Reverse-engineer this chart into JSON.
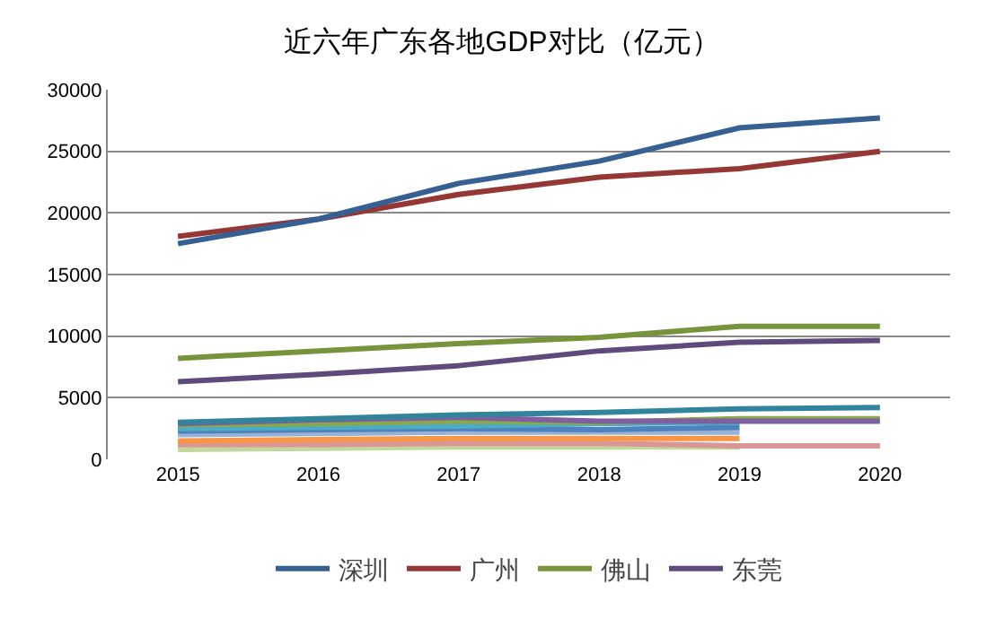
{
  "chart_data": {
    "type": "line",
    "title": "近六年广东各地GDP对比（亿元）",
    "categories": [
      "2015",
      "2016",
      "2017",
      "2018",
      "2019",
      "2020"
    ],
    "ylim": [
      0,
      30000
    ],
    "yticks": [
      0,
      5000,
      10000,
      15000,
      20000,
      25000,
      30000
    ],
    "grid": "y",
    "legend": "bottom",
    "marker": "none",
    "line_style": "solid",
    "series": [
      {
        "name": "深圳",
        "color": "#376092",
        "values": [
          17500,
          19500,
          22400,
          24200,
          26900,
          27700
        ]
      },
      {
        "name": "广州",
        "color": "#953735",
        "values": [
          18100,
          19500,
          21500,
          22900,
          23600,
          25000
        ]
      },
      {
        "name": "佛山",
        "color": "#77933c",
        "values": [
          8200,
          8800,
          9400,
          9900,
          10800,
          10800
        ]
      },
      {
        "name": "东莞",
        "color": "#604a7b",
        "values": [
          6300,
          6900,
          7600,
          8800,
          9500,
          9650
        ]
      },
      {
        "color": "#31849b",
        "values": [
          3000,
          3300,
          3600,
          3800,
          4100,
          4200
        ]
      },
      {
        "color": "#7f5fa0",
        "values": [
          2900,
          3200,
          3400,
          3100,
          3100,
          3100
        ]
      },
      {
        "color": "#8aa84a",
        "values": [
          2800,
          2900,
          3100,
          3000,
          3300,
          3300
        ]
      },
      {
        "color": "#4bacc6",
        "values": [
          2500,
          2600,
          2700,
          2900,
          3000,
          null
        ]
      },
      {
        "color": "#4f81bd",
        "values": [
          2300,
          2400,
          2500,
          2400,
          2600,
          null
        ]
      },
      {
        "color": "#95b3d7",
        "values": [
          2000,
          2100,
          2200,
          2200,
          2200,
          null
        ]
      },
      {
        "color": "#f79646",
        "values": [
          1500,
          1600,
          1700,
          1700,
          1700,
          null
        ]
      },
      {
        "color": "#d99694",
        "values": [
          1200,
          1200,
          1300,
          1300,
          1100,
          1100
        ]
      },
      {
        "color": "#c3d69b",
        "values": [
          800,
          900,
          1000,
          1000,
          1000,
          null
        ]
      }
    ]
  }
}
